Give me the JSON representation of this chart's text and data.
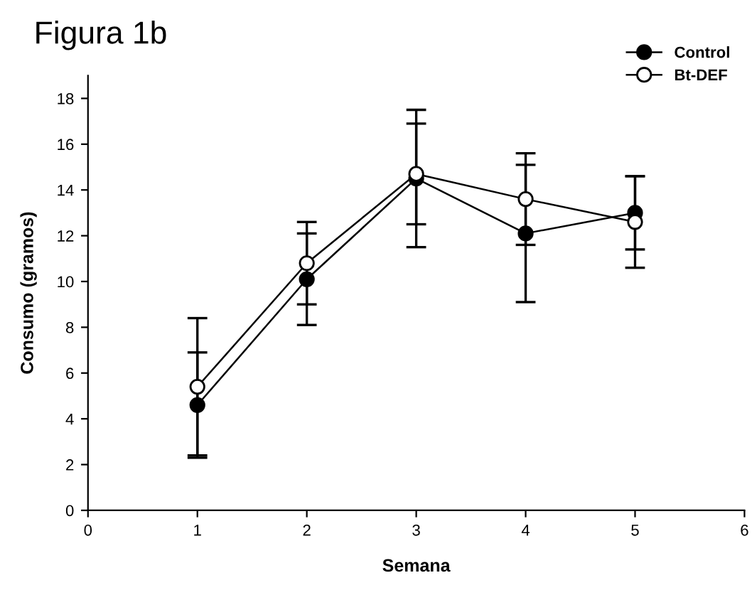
{
  "chart_data": {
    "type": "line",
    "title": "Figura 1b",
    "xlabel": "Semana",
    "ylabel": "Consumo (gramos)",
    "x": [
      1,
      2,
      3,
      4,
      5
    ],
    "series": [
      {
        "name": "Control",
        "color": "#000000",
        "values": [
          4.6,
          10.1,
          14.5,
          12.1,
          13.0
        ],
        "errors": [
          2.3,
          2.0,
          3.0,
          3.0,
          1.6
        ]
      },
      {
        "name": "Bt-DEF",
        "color": "#000000",
        "values": [
          5.4,
          10.8,
          14.7,
          13.6,
          12.6
        ],
        "errors": [
          3.0,
          1.8,
          2.2,
          2.0,
          2.0
        ]
      }
    ],
    "xlim": [
      0,
      6
    ],
    "xticks": [
      0,
      1,
      2,
      3,
      4,
      5,
      6
    ],
    "ylim": [
      0,
      19
    ],
    "yticks": [
      0,
      2,
      4,
      6,
      8,
      10,
      12,
      14,
      16,
      18
    ],
    "marker": "circle",
    "line_style": "solid",
    "legend": "top right",
    "grid": false
  }
}
